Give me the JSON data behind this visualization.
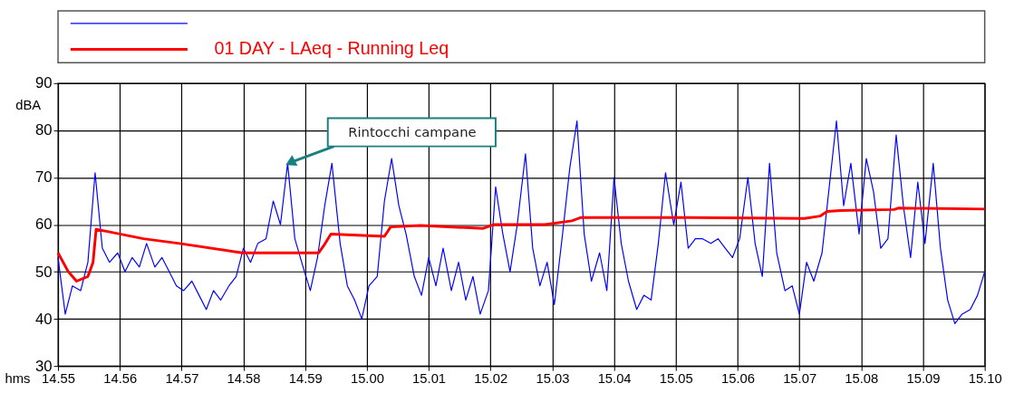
{
  "chart_data": {
    "type": "line",
    "xlabel": "hms",
    "ylabel": "dBA",
    "xlim": [
      "2000-01-01T14:55:00",
      "2000-01-01T15:10:00"
    ],
    "ylim": [
      30,
      90
    ],
    "yticks": [
      30,
      40,
      50,
      60,
      70,
      80,
      90
    ],
    "xticks": [
      {
        "value": "2000-01-01T14:55:00",
        "label": "14.55"
      },
      {
        "value": "2000-01-01T14:56:00",
        "label": "14.56"
      },
      {
        "value": "2000-01-01T14:57:00",
        "label": "14.57"
      },
      {
        "value": "2000-01-01T14:58:00",
        "label": "14.58"
      },
      {
        "value": "2000-01-01T14:59:00",
        "label": "14.59"
      },
      {
        "value": "2000-01-01T15:00:00",
        "label": "15.00"
      },
      {
        "value": "2000-01-01T15:01:00",
        "label": "15.01"
      },
      {
        "value": "2000-01-01T15:02:00",
        "label": "15.02"
      },
      {
        "value": "2000-01-01T15:03:00",
        "label": "15.03"
      },
      {
        "value": "2000-01-01T15:04:00",
        "label": "15.04"
      },
      {
        "value": "2000-01-01T15:05:00",
        "label": "15.05"
      },
      {
        "value": "2000-01-01T15:06:00",
        "label": "15.06"
      },
      {
        "value": "2000-01-01T15:07:00",
        "label": "15.07"
      },
      {
        "value": "2000-01-01T15:08:00",
        "label": "15.08"
      },
      {
        "value": "2000-01-01T15:09:00",
        "label": "15.09"
      },
      {
        "value": "2000-01-01T15:10:00",
        "label": "15.10"
      }
    ],
    "grid": true,
    "legend": "top",
    "annotations": [
      {
        "text": "Rintocchi campane",
        "x": "2000-01-01T14:58:43",
        "y": 73
      }
    ],
    "series": [
      {
        "color": "#0000ff",
        "x": [
          "2000-01-01T14:55:00",
          "2000-01-01T14:55:07",
          "2000-01-01T14:55:14",
          "2000-01-01T14:55:22",
          "2000-01-01T14:55:29",
          "2000-01-01T14:55:36",
          "2000-01-01T14:55:43",
          "2000-01-01T14:55:50",
          "2000-01-01T14:55:58",
          "2000-01-01T14:56:05",
          "2000-01-01T14:56:12",
          "2000-01-01T14:56:19",
          "2000-01-01T14:56:26",
          "2000-01-01T14:56:34",
          "2000-01-01T14:56:41",
          "2000-01-01T14:56:48",
          "2000-01-01T14:56:55",
          "2000-01-01T14:57:02",
          "2000-01-01T14:57:10",
          "2000-01-01T14:57:17",
          "2000-01-01T14:57:24",
          "2000-01-01T14:57:31",
          "2000-01-01T14:57:38",
          "2000-01-01T14:57:46",
          "2000-01-01T14:57:53",
          "2000-01-01T14:58:00",
          "2000-01-01T14:58:07",
          "2000-01-01T14:58:14",
          "2000-01-01T14:58:22",
          "2000-01-01T14:58:29",
          "2000-01-01T14:58:36",
          "2000-01-01T14:58:43",
          "2000-01-01T14:58:50",
          "2000-01-01T14:58:58",
          "2000-01-01T14:59:05",
          "2000-01-01T14:59:12",
          "2000-01-01T14:59:19",
          "2000-01-01T14:59:26",
          "2000-01-01T14:59:34",
          "2000-01-01T14:59:41",
          "2000-01-01T14:59:48",
          "2000-01-01T14:59:55",
          "2000-01-01T15:00:02",
          "2000-01-01T15:00:10",
          "2000-01-01T15:00:17",
          "2000-01-01T15:00:24",
          "2000-01-01T15:00:31",
          "2000-01-01T15:00:38",
          "2000-01-01T15:00:46",
          "2000-01-01T15:00:53",
          "2000-01-01T15:01:00",
          "2000-01-01T15:01:07",
          "2000-01-01T15:01:14",
          "2000-01-01T15:01:22",
          "2000-01-01T15:01:29",
          "2000-01-01T15:01:36",
          "2000-01-01T15:01:43",
          "2000-01-01T15:01:50",
          "2000-01-01T15:01:58",
          "2000-01-01T15:02:05",
          "2000-01-01T15:02:12",
          "2000-01-01T15:02:19",
          "2000-01-01T15:02:26",
          "2000-01-01T15:02:34",
          "2000-01-01T15:02:41",
          "2000-01-01T15:02:48",
          "2000-01-01T15:02:55",
          "2000-01-01T15:03:02",
          "2000-01-01T15:03:10",
          "2000-01-01T15:03:17",
          "2000-01-01T15:03:24",
          "2000-01-01T15:03:31",
          "2000-01-01T15:03:38",
          "2000-01-01T15:03:46",
          "2000-01-01T15:03:53",
          "2000-01-01T15:04:00",
          "2000-01-01T15:04:07",
          "2000-01-01T15:04:14",
          "2000-01-01T15:04:22",
          "2000-01-01T15:04:29",
          "2000-01-01T15:04:36",
          "2000-01-01T15:04:43",
          "2000-01-01T15:04:50",
          "2000-01-01T15:04:58",
          "2000-01-01T15:05:05",
          "2000-01-01T15:05:12",
          "2000-01-01T15:05:19",
          "2000-01-01T15:05:26",
          "2000-01-01T15:05:34",
          "2000-01-01T15:05:41",
          "2000-01-01T15:05:48",
          "2000-01-01T15:05:55",
          "2000-01-01T15:06:02",
          "2000-01-01T15:06:10",
          "2000-01-01T15:06:17",
          "2000-01-01T15:06:24",
          "2000-01-01T15:06:31",
          "2000-01-01T15:06:38",
          "2000-01-01T15:06:46",
          "2000-01-01T15:06:53",
          "2000-01-01T15:07:00",
          "2000-01-01T15:07:07",
          "2000-01-01T15:07:14",
          "2000-01-01T15:07:22",
          "2000-01-01T15:07:29",
          "2000-01-01T15:07:36",
          "2000-01-01T15:07:43",
          "2000-01-01T15:07:50",
          "2000-01-01T15:07:58",
          "2000-01-01T15:08:05",
          "2000-01-01T15:08:12",
          "2000-01-01T15:08:19",
          "2000-01-01T15:08:26",
          "2000-01-01T15:08:34",
          "2000-01-01T15:08:41",
          "2000-01-01T15:08:48",
          "2000-01-01T15:08:55",
          "2000-01-01T15:09:02",
          "2000-01-01T15:09:10",
          "2000-01-01T15:09:17",
          "2000-01-01T15:09:24",
          "2000-01-01T15:09:31",
          "2000-01-01T15:09:38",
          "2000-01-01T15:09:46",
          "2000-01-01T15:09:53",
          "2000-01-01T15:10:00"
        ],
        "values": [
          53,
          41,
          47,
          46,
          52,
          71,
          55,
          52,
          54,
          50,
          53,
          51,
          56,
          51,
          53,
          50,
          47,
          46,
          48,
          45,
          42,
          46,
          44,
          47,
          49,
          55,
          52,
          56,
          57,
          65,
          60,
          73,
          57,
          51,
          46,
          53,
          64,
          73,
          56,
          47,
          44,
          40,
          47,
          49,
          65,
          74,
          64,
          58,
          49,
          45,
          53,
          47,
          55,
          46,
          52,
          44,
          49,
          41,
          46,
          68,
          58,
          50,
          60,
          75,
          55,
          47,
          52,
          43,
          58,
          72,
          82,
          58,
          48,
          54,
          46,
          70,
          56,
          48,
          42,
          45,
          44,
          56,
          71,
          60,
          69,
          55,
          57,
          57,
          56,
          57,
          55,
          53,
          57,
          70,
          56,
          49,
          73,
          54,
          46,
          47,
          41,
          52,
          48,
          54,
          68,
          82,
          64,
          73,
          58,
          74,
          67,
          55,
          57,
          79,
          64,
          53,
          69,
          56,
          73,
          55,
          44,
          39,
          41,
          42,
          45,
          50
        ]
      },
      {
        "name": "01 DAY - LAeq - Running Leq",
        "color": "#ff0000",
        "x": [
          "2000-01-01T14:55:00",
          "2000-01-01T14:55:10",
          "2000-01-01T14:55:18",
          "2000-01-01T14:55:29",
          "2000-01-01T14:55:34",
          "2000-01-01T14:55:37",
          "2000-01-01T14:55:49",
          "2000-01-01T14:56:23",
          "2000-01-01T14:56:58",
          "2000-01-01T14:57:59",
          "2000-01-01T14:59:13",
          "2000-01-01T14:59:18",
          "2000-01-01T14:59:25",
          "2000-01-01T15:00:17",
          "2000-01-01T15:00:23",
          "2000-01-01T15:00:52",
          "2000-01-01T15:01:53",
          "2000-01-01T15:02:03",
          "2000-01-01T15:02:53",
          "2000-01-01T15:03:19",
          "2000-01-01T15:03:28",
          "2000-01-01T15:05:03",
          "2000-01-01T15:07:05",
          "2000-01-01T15:07:20",
          "2000-01-01T15:07:27",
          "2000-01-01T15:07:40",
          "2000-01-01T15:08:32",
          "2000-01-01T15:08:36",
          "2000-01-01T15:10:00"
        ],
        "values": [
          54,
          50,
          48,
          49,
          52,
          59,
          58.5,
          57,
          56,
          54,
          54,
          55.5,
          58,
          57.5,
          59.5,
          59.8,
          59.2,
          60,
          60,
          60.8,
          61.5,
          61.5,
          61.3,
          61.8,
          62.8,
          63,
          63.2,
          63.5,
          63.3
        ]
      }
    ]
  }
}
